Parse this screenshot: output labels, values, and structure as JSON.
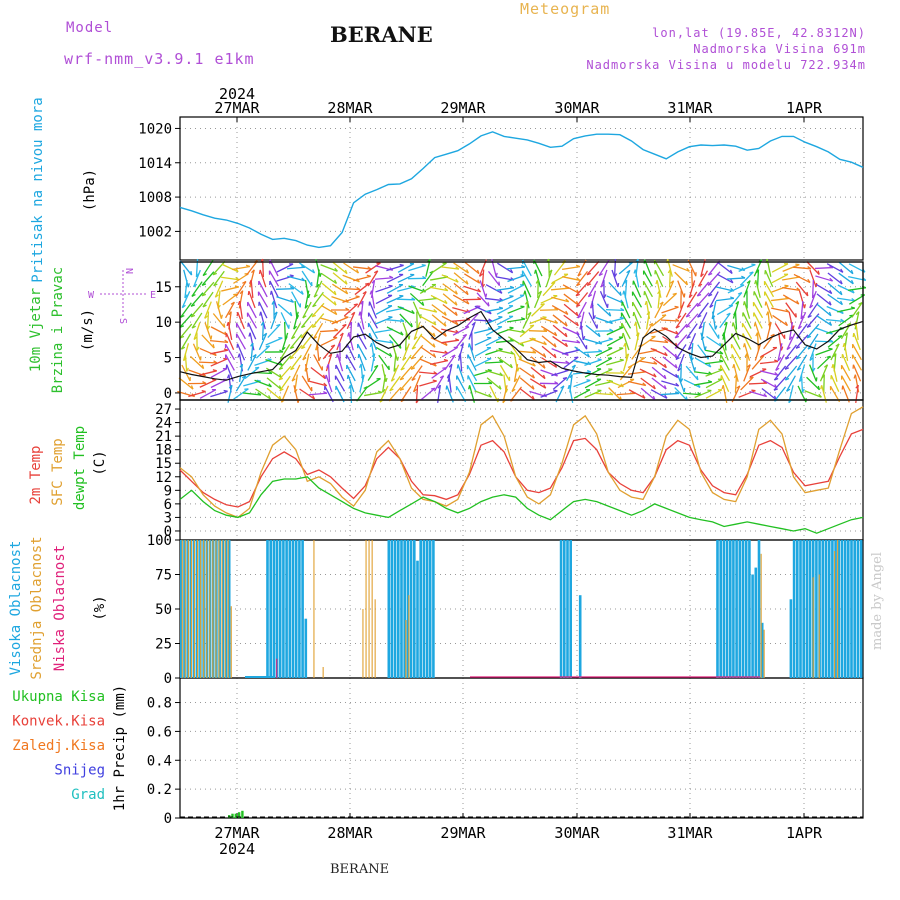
{
  "header": {
    "model_label": "Model",
    "model_name": "wrf-nmm_v3.9.1 e1km",
    "station": "BERANE",
    "meteogram": "Meteogram",
    "coords": "lon,lat (19.85E, 42.8312N)",
    "altitude": "Nadmorska Visina 691m",
    "model_altitude": "Nadmorska Visina u modelu 722.934m"
  },
  "footer": {
    "station": "BERANE",
    "watermark": "made by Angel"
  },
  "time_axis": {
    "year": "2024",
    "days": [
      "27MAR",
      "28MAR",
      "29MAR",
      "30MAR",
      "31MAR",
      "1APR"
    ]
  },
  "colors": {
    "pressure": "#1ea7e0",
    "wind_label": "#2ec02e",
    "temp": "#e8413a",
    "sfc_temp": "#e0a030",
    "dewpt": "#22c022",
    "cloud_high": "#1ea7e0",
    "cloud_mid": "#e0a030",
    "cloud_low": "#e0207a",
    "rain": "#22c022",
    "conv": "#e8413a",
    "freezing": "#f07820",
    "snow": "#4040e0",
    "grad": "#20c0c0"
  },
  "chart_data": [
    {
      "type": "line",
      "panel": "pressure",
      "ylabel": [
        "Pritisak na nivou mora",
        "(hPa)"
      ],
      "ylim": [
        997,
        1022
      ],
      "yticks": [
        1002,
        1008,
        1014,
        1020
      ],
      "grid": true,
      "series": [
        {
          "values": [
            1006.2,
            1005.6,
            1004.9,
            1004.3,
            1004.0,
            1003.4,
            1002.6,
            1001.5,
            1000.6,
            1000.8,
            1000.4,
            999.6,
            999.2,
            999.5,
            1001.8,
            1007.0,
            1008.5,
            1009.3,
            1010.2,
            1010.3,
            1011.2,
            1013.0,
            1014.9,
            1015.5,
            1016.1,
            1017.3,
            1018.7,
            1019.4,
            1018.6,
            1018.3,
            1018.0,
            1017.4,
            1016.7,
            1016.9,
            1018.2,
            1018.7,
            1019.0,
            1019.0,
            1018.9,
            1017.8,
            1016.3,
            1015.5,
            1014.7,
            1015.9,
            1016.8,
            1017.1,
            1017.0,
            1017.1,
            1016.9,
            1016.2,
            1016.5,
            1017.8,
            1018.6,
            1018.6,
            1017.6,
            1016.8,
            1015.9,
            1014.6,
            1014.1,
            1013.2
          ]
        }
      ]
    },
    {
      "type": "line",
      "panel": "wind",
      "ylabel": [
        "10m Vjetar",
        "Brzina i Pravac",
        "(m/s)"
      ],
      "compass": {
        "n": "N",
        "s": "S",
        "e": "E",
        "w": "W"
      },
      "ylim": [
        -1,
        18.5
      ],
      "yticks": [
        0,
        5,
        10,
        15
      ],
      "grid": true,
      "series": [
        {
          "values": [
            3.0,
            2.6,
            2.3,
            2.0,
            1.8,
            2.3,
            2.7,
            3.0,
            3.3,
            5.0,
            6.0,
            8.6,
            6.8,
            5.6,
            5.9,
            7.9,
            8.3,
            7.1,
            6.3,
            6.8,
            8.7,
            9.4,
            7.6,
            8.8,
            9.5,
            10.6,
            11.5,
            8.9,
            7.6,
            6.3,
            4.7,
            4.3,
            4.5,
            3.5,
            3.1,
            2.8,
            2.6,
            2.5,
            2.3,
            2.2,
            7.8,
            9.0,
            8.0,
            6.4,
            5.6,
            5.0,
            5.2,
            6.8,
            8.4,
            7.7,
            6.8,
            7.8,
            8.5,
            8.9,
            6.8,
            6.2,
            7.3,
            9.0,
            9.6,
            10.1
          ]
        }
      ]
    },
    {
      "type": "line",
      "panel": "temperature",
      "ylabel": [
        "2m Temp",
        "SFC Temp",
        "dewpt Temp",
        "(C)"
      ],
      "ylim": [
        -2,
        29
      ],
      "yticks": [
        0,
        3,
        6,
        9,
        12,
        15,
        18,
        21,
        24,
        27
      ],
      "grid": true,
      "series": [
        {
          "name": "2m Temp",
          "values": [
            13.5,
            11.0,
            8.5,
            7.0,
            5.8,
            5.3,
            6.5,
            12.0,
            16.0,
            17.5,
            16.0,
            12.5,
            13.5,
            12.0,
            9.5,
            7.2,
            10.0,
            16.0,
            18.5,
            16.0,
            11.0,
            8.0,
            7.8,
            7.0,
            8.0,
            12.5,
            19.0,
            20.0,
            17.5,
            12.0,
            9.0,
            8.5,
            9.5,
            14.0,
            20.0,
            20.5,
            18.0,
            13.0,
            10.5,
            9.0,
            8.5,
            12.0,
            18.0,
            20.0,
            19.0,
            13.5,
            10.0,
            8.5,
            8.0,
            12.5,
            19.0,
            20.0,
            18.5,
            13.0,
            10.0,
            10.5,
            11.0,
            16.5,
            21.5,
            22.5
          ]
        },
        {
          "name": "SFC Temp",
          "values": [
            14.0,
            12.0,
            8.0,
            5.5,
            4.0,
            3.0,
            5.0,
            13.0,
            19.0,
            21.0,
            18.0,
            11.0,
            12.0,
            10.5,
            7.5,
            5.5,
            9.0,
            17.5,
            20.0,
            16.0,
            9.5,
            7.0,
            6.5,
            5.5,
            7.0,
            13.0,
            23.5,
            25.5,
            21.0,
            12.0,
            7.5,
            6.0,
            8.0,
            15.0,
            23.5,
            25.5,
            21.5,
            13.0,
            9.0,
            7.5,
            7.0,
            12.0,
            21.0,
            24.5,
            22.5,
            13.0,
            8.5,
            7.0,
            6.5,
            12.0,
            22.5,
            24.5,
            21.5,
            12.0,
            8.5,
            9.0,
            9.5,
            18.0,
            26.0,
            27.5
          ]
        },
        {
          "name": "dewpt Temp",
          "values": [
            7.0,
            9.0,
            6.5,
            4.5,
            3.5,
            3.0,
            4.0,
            8.0,
            11.0,
            11.5,
            11.5,
            12.0,
            9.5,
            8.0,
            6.5,
            5.0,
            4.0,
            3.5,
            3.0,
            4.5,
            6.0,
            7.5,
            6.5,
            5.0,
            4.0,
            5.0,
            6.5,
            7.5,
            8.0,
            7.5,
            5.0,
            3.5,
            2.5,
            4.5,
            6.5,
            7.0,
            6.5,
            5.5,
            4.5,
            3.5,
            4.5,
            6.0,
            5.0,
            4.0,
            3.0,
            2.5,
            2.0,
            1.0,
            1.5,
            2.0,
            1.5,
            1.0,
            0.5,
            0.0,
            0.5,
            -0.5,
            0.5,
            1.5,
            2.5,
            3.0
          ]
        }
      ]
    },
    {
      "type": "bar",
      "panel": "clouds",
      "ylabel": [
        "Visoka Oblacnost",
        "Srednja Oblacnost",
        "Niska Oblacnost",
        "(%)"
      ],
      "ylim": [
        0,
        100
      ],
      "yticks": [
        0,
        25,
        50,
        75,
        100
      ],
      "grid": true,
      "series": [
        {
          "name": "Visoka Oblacnost",
          "values": [
            100,
            100,
            100,
            100,
            100,
            100,
            100,
            100,
            100,
            100,
            100,
            100,
            100,
            100,
            100,
            100,
            0,
            0,
            0,
            0,
            0,
            0,
            0,
            0,
            0,
            0,
            0,
            100,
            100,
            100,
            100,
            100,
            100,
            100,
            100,
            100,
            100,
            100,
            100,
            43,
            0,
            0,
            0,
            0,
            0,
            0,
            0,
            0,
            0,
            0,
            0,
            0,
            0,
            0,
            0,
            0,
            0,
            0,
            0,
            0,
            0,
            0,
            0,
            0,
            0,
            100,
            100,
            100,
            100,
            100,
            100,
            100,
            100,
            100,
            85,
            100,
            100,
            100,
            100,
            100,
            0,
            0,
            0,
            0,
            0,
            0,
            0,
            0,
            0,
            0,
            0,
            0,
            0,
            0,
            0,
            0,
            0,
            0,
            0,
            0,
            0,
            0,
            0,
            0,
            0,
            0,
            0,
            0,
            0,
            0,
            0,
            0,
            0,
            0,
            0,
            0,
            0,
            0,
            0,
            100,
            100,
            100,
            100,
            0,
            0,
            60,
            0,
            0,
            0,
            0,
            0,
            0,
            0,
            0,
            0,
            0,
            0,
            0,
            0,
            0,
            0,
            0,
            0,
            0,
            0,
            0,
            0,
            0,
            0,
            0,
            0,
            0,
            0,
            0,
            0,
            0,
            0,
            0,
            0,
            0,
            0,
            0,
            0,
            0,
            0,
            0,
            0,
            0,
            100,
            100,
            100,
            100,
            100,
            100,
            100,
            100,
            100,
            100,
            100,
            75,
            80,
            100,
            40,
            0,
            0,
            0,
            0,
            0,
            0,
            0,
            0,
            57,
            100,
            100,
            100,
            100,
            100,
            100,
            100,
            100,
            100,
            100,
            100,
            100,
            100,
            100,
            100,
            100,
            100,
            100,
            100,
            100,
            100,
            100
          ]
        },
        {
          "name": "Srednja Oblacnost",
          "values": [
            100,
            100,
            100,
            100,
            100,
            100,
            100,
            100,
            100,
            100,
            100,
            100,
            100,
            100,
            100,
            100,
            52,
            0,
            0,
            0,
            0,
            0,
            0,
            0,
            0,
            0,
            0,
            0,
            0,
            0,
            0,
            0,
            0,
            0,
            0,
            0,
            0,
            0,
            0,
            0,
            0,
            0,
            0,
            100,
            0,
            0,
            8,
            0,
            0,
            0,
            0,
            0,
            0,
            0,
            0,
            0,
            0,
            0,
            0,
            50,
            100,
            100,
            100,
            57,
            0,
            0,
            0,
            0,
            0,
            0,
            0,
            0,
            0,
            42,
            60,
            0,
            0,
            0,
            0,
            0,
            0,
            0,
            0,
            0,
            0,
            0,
            0,
            0,
            0,
            0,
            0,
            0,
            0,
            0,
            0,
            0,
            0,
            0,
            0,
            0,
            0,
            0,
            0,
            0,
            0,
            0,
            0,
            0,
            0,
            0,
            0,
            0,
            0,
            0,
            0,
            0,
            0,
            0,
            0,
            0,
            0,
            0,
            0,
            0,
            0,
            0,
            0,
            0,
            0,
            0,
            0,
            0,
            0,
            0,
            0,
            0,
            0,
            0,
            0,
            0,
            0,
            0,
            0,
            0,
            0,
            0,
            0,
            0,
            0,
            0,
            0,
            0,
            0,
            0,
            0,
            0,
            0,
            0,
            0,
            0,
            0,
            0,
            0,
            0,
            0,
            0,
            0,
            0,
            0,
            0,
            0,
            0,
            0,
            0,
            0,
            0,
            0,
            0,
            0,
            0,
            0,
            0,
            0,
            0,
            0,
            0,
            0,
            0,
            0,
            90,
            35,
            0,
            0,
            0,
            0,
            0,
            0,
            0,
            0,
            0,
            0,
            0,
            0,
            0,
            0,
            0,
            73,
            0,
            75,
            0,
            0,
            0,
            0,
            92,
            100,
            0,
            0,
            0,
            0,
            0,
            0,
            0,
            0
          ]
        },
        {
          "name": "Niska Oblacnost",
          "values": [
            0,
            0,
            0,
            0,
            0,
            0,
            0,
            0,
            0,
            0,
            0,
            0,
            0,
            0,
            0,
            0,
            0,
            0,
            0,
            0,
            0,
            0,
            0,
            0,
            0,
            0,
            0,
            0,
            0,
            0,
            0,
            14,
            0,
            0,
            0,
            0,
            0,
            0,
            0,
            0,
            0,
            0,
            0,
            0,
            0,
            0,
            0,
            0,
            0,
            0,
            0,
            0,
            0,
            0,
            0,
            0,
            0,
            0,
            0,
            0,
            0,
            0,
            0,
            0,
            0,
            0,
            0,
            0,
            0,
            0,
            0,
            0,
            0,
            0,
            0,
            0,
            0,
            0,
            0,
            0,
            0,
            0,
            0,
            0,
            0,
            0,
            0,
            0,
            0,
            0,
            0,
            0,
            0,
            0,
            0,
            0,
            0,
            0,
            0,
            0,
            0,
            0,
            0,
            0,
            0,
            0,
            0,
            0,
            0,
            0,
            0,
            0,
            0,
            0,
            0,
            0,
            0,
            0,
            0,
            0,
            0,
            0,
            0,
            0,
            0,
            0,
            0,
            0,
            0,
            0,
            0,
            0,
            0,
            0,
            0,
            0,
            0,
            0,
            0,
            0,
            0,
            0,
            0,
            0,
            0,
            0,
            0,
            0,
            0,
            0,
            0,
            0,
            0,
            0,
            0,
            0,
            0,
            0,
            0,
            0,
            0,
            0,
            0,
            0,
            0,
            0,
            0,
            0,
            0,
            0,
            0,
            0,
            0,
            0,
            0,
            0,
            0,
            0,
            0,
            0,
            0,
            0,
            0,
            0,
            0,
            0,
            0,
            0,
            0,
            0,
            0,
            0,
            0,
            0,
            0,
            0,
            0,
            0,
            0,
            0,
            0,
            0,
            0,
            0,
            0,
            0,
            0,
            0,
            0,
            0,
            0,
            0,
            0,
            0,
            0,
            0,
            0,
            0,
            0,
            0,
            0,
            0,
            0,
            0
          ]
        }
      ]
    },
    {
      "type": "bar",
      "panel": "precip",
      "ylabel": [
        "1hr Precip (mm)"
      ],
      "legend": [
        "Ukupna Kisa",
        "Konvek.Kisa",
        "Zaledj.Kisa",
        "Snijeg",
        "Grad"
      ],
      "ylim": [
        0,
        0.97
      ],
      "yticks": [
        0,
        0.2,
        0.4,
        0.6,
        0.8
      ],
      "grid": true,
      "series": [
        {
          "name": "Ukupna Kisa",
          "values": [
            0,
            0,
            0,
            0,
            0,
            0,
            0,
            0,
            0,
            0,
            0,
            0,
            0,
            0,
            0,
            0,
            0,
            0,
            0,
            0,
            0,
            0,
            0,
            0,
            0,
            0.02,
            0.03,
            0.03,
            0.04,
            0.05,
            0.0
          ]
        }
      ]
    }
  ]
}
